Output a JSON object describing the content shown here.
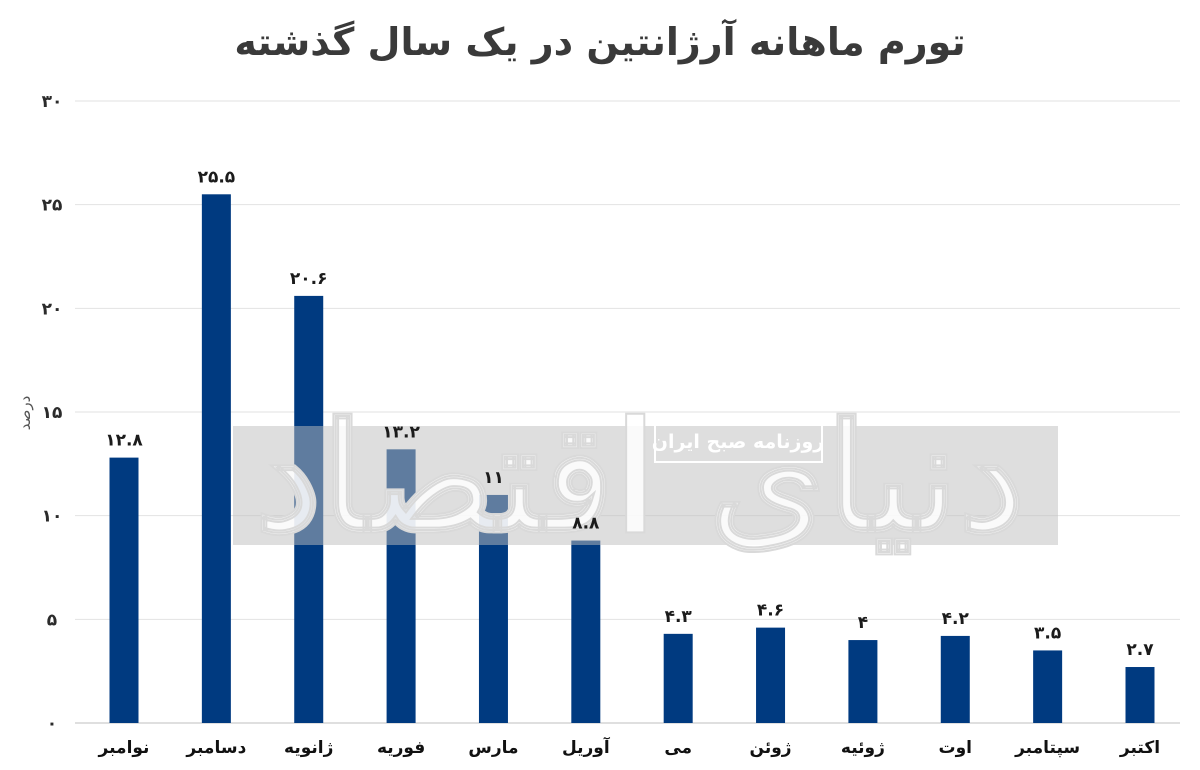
{
  "chart_data": {
    "type": "bar",
    "title": "تورم ماهانه آرژانتین در یک سال گذشته",
    "ylabel": "درصد",
    "xlabel": "",
    "ylim": [
      0,
      30
    ],
    "yticks": [
      "۰",
      "۵",
      "۱۰",
      "۱۵",
      "۲۰",
      "۲۵",
      "۳۰"
    ],
    "ytick_values": [
      0,
      5,
      10,
      15,
      20,
      25,
      30
    ],
    "grid": true,
    "bar_color": "#003a80",
    "categories": [
      "نوامبر",
      "دسامبر",
      "ژانویه",
      "فوریه",
      "مارس",
      "آوریل",
      "می",
      "ژوئن",
      "ژوئیه",
      "اوت",
      "سپتامبر",
      "اکتبر"
    ],
    "values": [
      12.8,
      25.5,
      20.6,
      13.2,
      11,
      8.8,
      4.3,
      4.6,
      4,
      4.2,
      3.5,
      2.7
    ],
    "value_labels": [
      "۱۲.۸",
      "۲۵.۵",
      "۲۰.۶",
      "۱۳.۲",
      "۱۱",
      "۸.۸",
      "۴.۳",
      "۴.۶",
      "۴",
      "۴.۲",
      "۳.۵",
      "۲.۷"
    ]
  },
  "watermark": {
    "text": "دنیای اقتصاد",
    "subtext": "روزنامه صبح ایران"
  }
}
